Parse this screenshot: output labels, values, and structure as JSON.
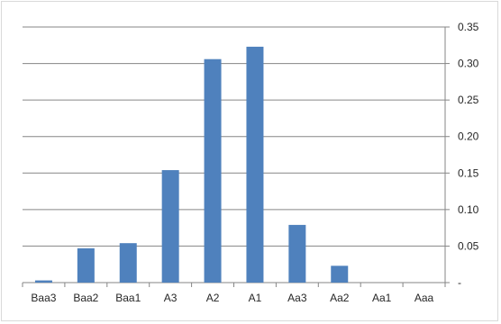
{
  "chart_data": {
    "type": "bar",
    "title": "",
    "xlabel": "",
    "ylabel": "",
    "categories": [
      "Baa3",
      "Baa2",
      "Baa1",
      "A3",
      "A2",
      "A1",
      "Aa3",
      "Aa2",
      "Aa1",
      "Aaa"
    ],
    "values": [
      0.003,
      0.047,
      0.054,
      0.154,
      0.306,
      0.323,
      0.079,
      0.023,
      0.0,
      0.0
    ],
    "ylim": [
      0,
      0.35
    ],
    "y_ticks": [
      0,
      0.05,
      0.1,
      0.15,
      0.2,
      0.25,
      0.3,
      0.35
    ],
    "y_tick_labels": [
      "-",
      "0.05",
      "0.10",
      "0.15",
      "0.20",
      "0.25",
      "0.30",
      "0.35"
    ],
    "y_axis_side": "right",
    "grid": true,
    "legend": "none",
    "colors": {
      "bar": "#4f81bd",
      "grid": "#868686",
      "axis": "#868686"
    }
  }
}
